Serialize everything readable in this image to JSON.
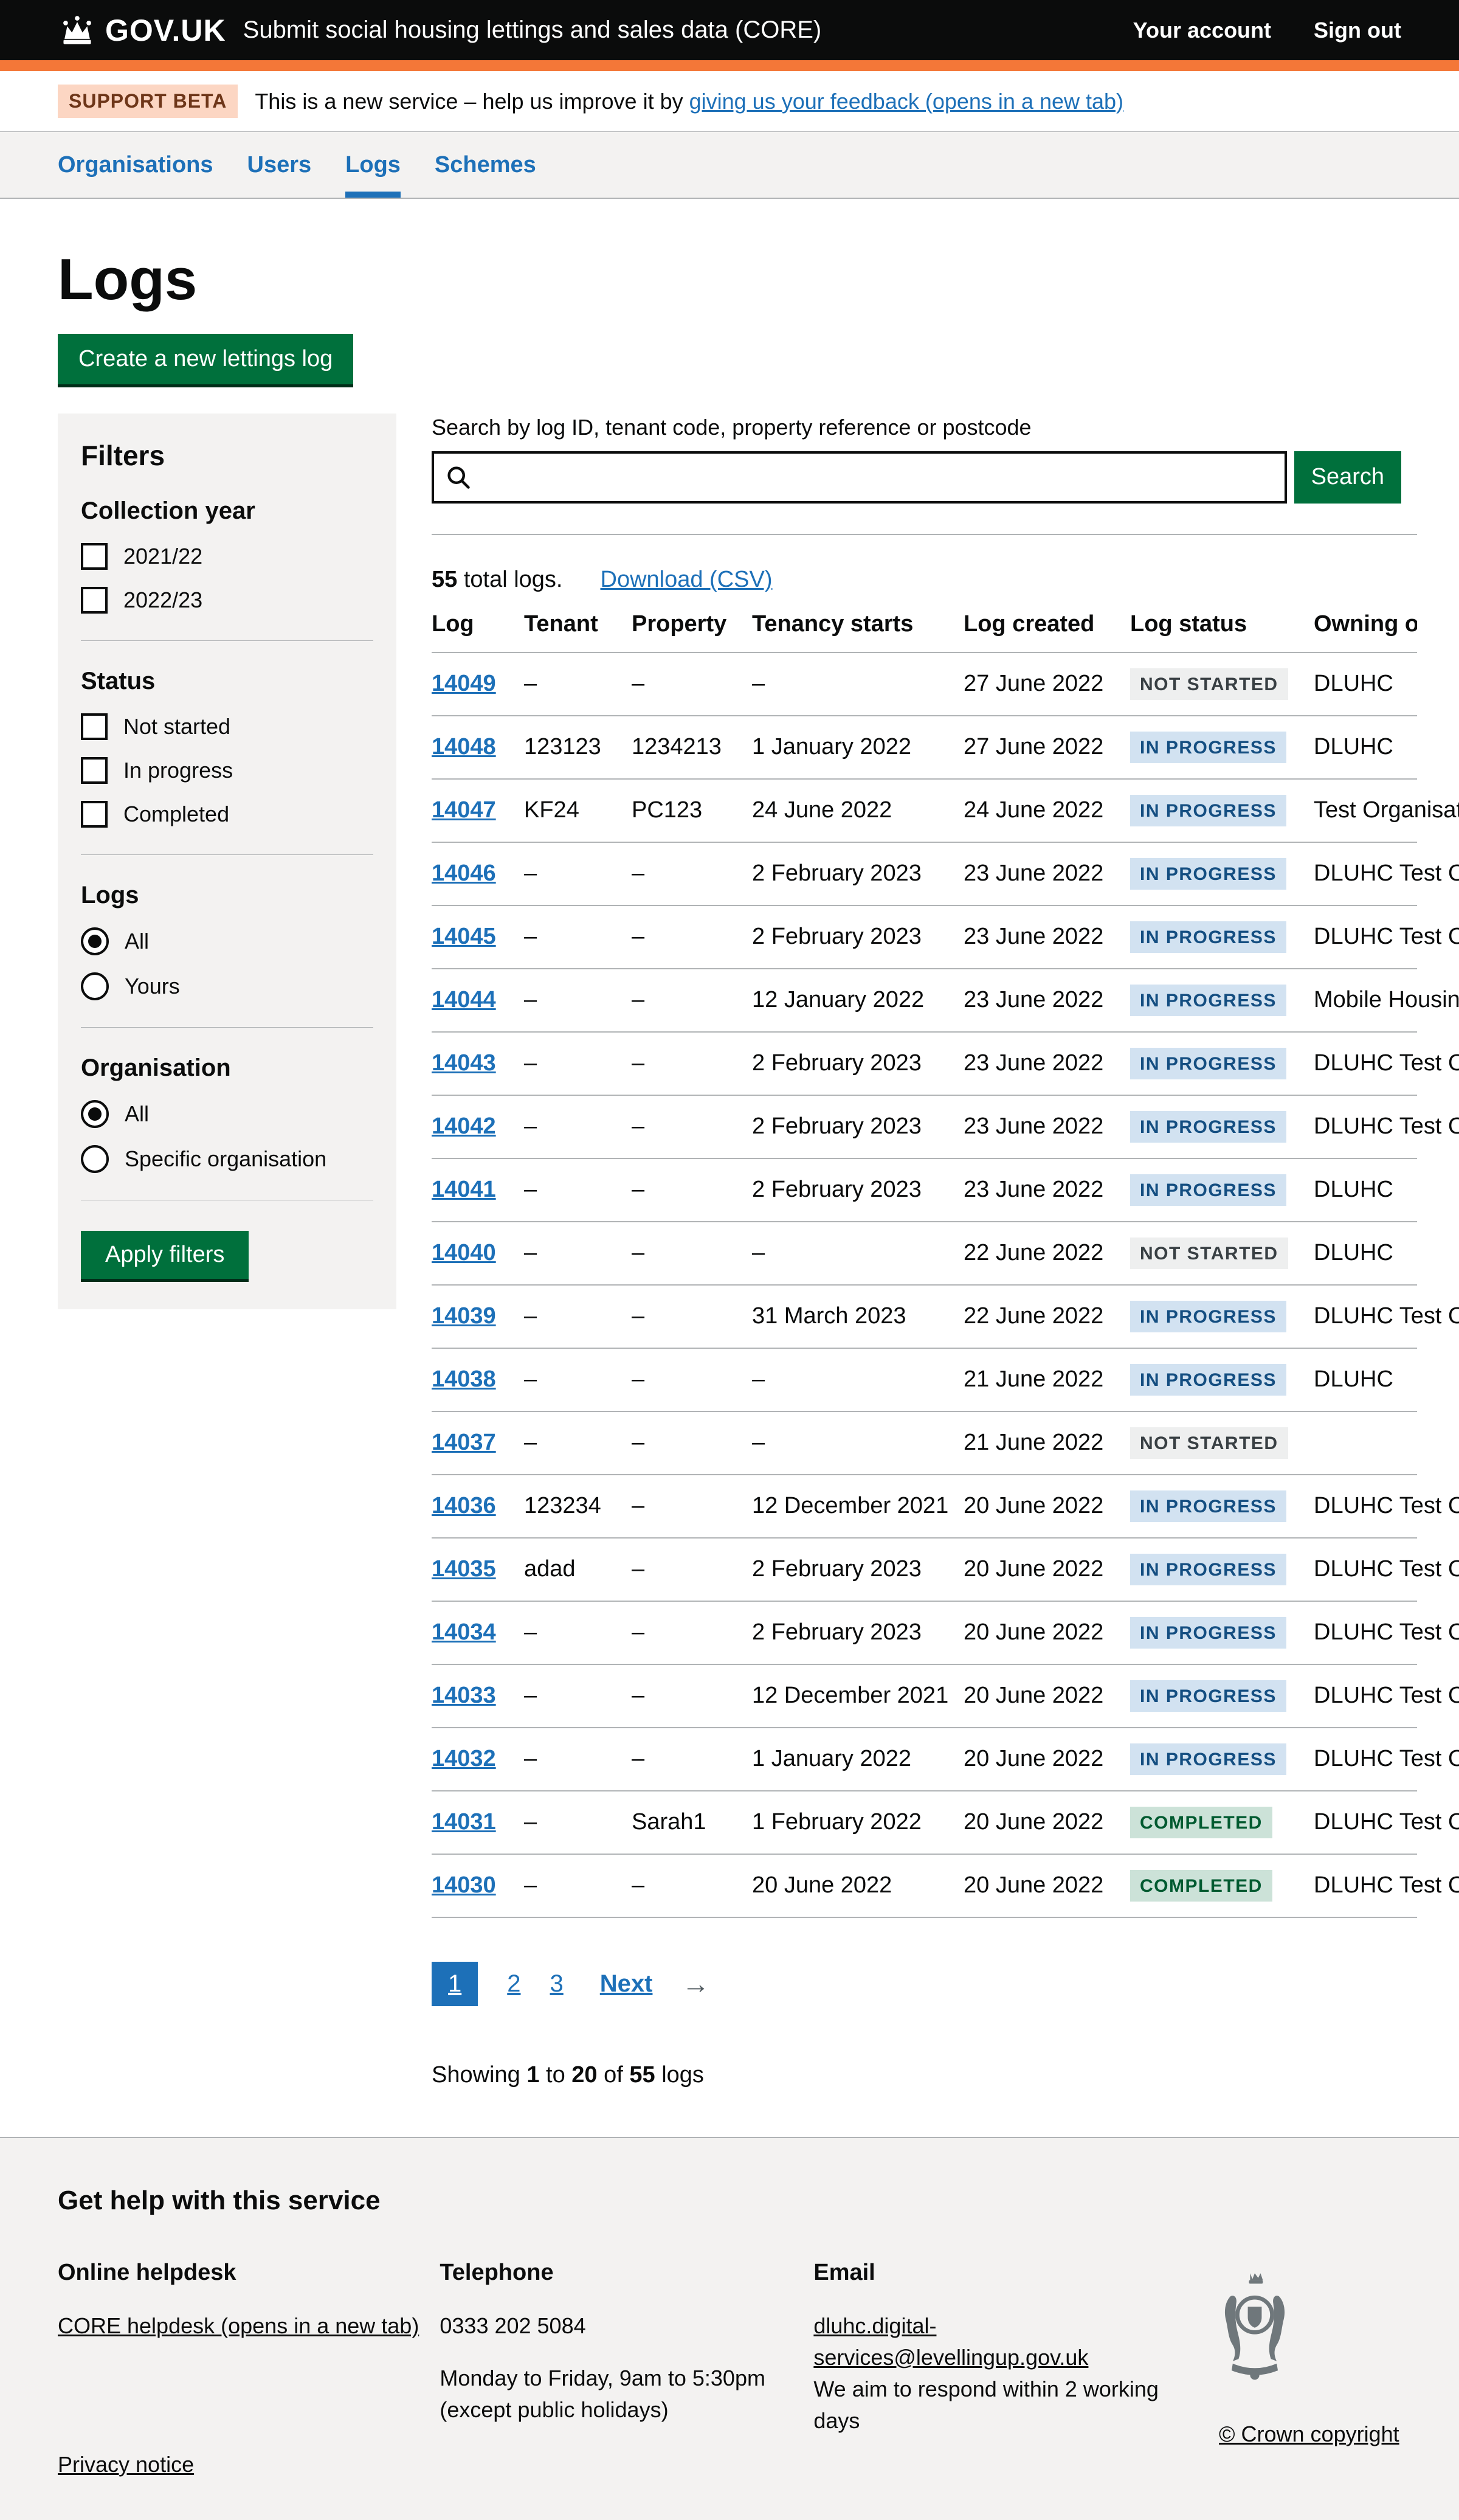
{
  "header": {
    "logo_text": "GOV.UK",
    "service_name": "Submit social housing lettings and sales data (CORE)",
    "account_link": "Your account",
    "signout_link": "Sign out"
  },
  "phase_banner": {
    "tag": "SUPPORT BETA",
    "message": "This is a new service – help us improve it by ",
    "feedback_link": "giving us your feedback (opens in a new tab)"
  },
  "nav": {
    "items": [
      {
        "label": "Organisations",
        "active": false
      },
      {
        "label": "Users",
        "active": false
      },
      {
        "label": "Logs",
        "active": true
      },
      {
        "label": "Schemes",
        "active": false
      }
    ]
  },
  "page": {
    "title": "Logs",
    "create_button": "Create a new lettings log"
  },
  "filters": {
    "heading": "Filters",
    "apply_button": "Apply filters",
    "groups": [
      {
        "label": "Collection year",
        "type": "checkbox",
        "options": [
          {
            "label": "2021/22",
            "checked": false
          },
          {
            "label": "2022/23",
            "checked": false
          }
        ]
      },
      {
        "label": "Status",
        "type": "checkbox",
        "options": [
          {
            "label": "Not started",
            "checked": false
          },
          {
            "label": "In progress",
            "checked": false
          },
          {
            "label": "Completed",
            "checked": false
          }
        ]
      },
      {
        "label": "Logs",
        "type": "radio",
        "options": [
          {
            "label": "All",
            "checked": true
          },
          {
            "label": "Yours",
            "checked": false
          }
        ]
      },
      {
        "label": "Organisation",
        "type": "radio",
        "options": [
          {
            "label": "All",
            "checked": true
          },
          {
            "label": "Specific organisation",
            "checked": false
          }
        ]
      }
    ]
  },
  "search": {
    "label": "Search by log ID, tenant code, property reference or postcode",
    "value": "",
    "button": "Search"
  },
  "results": {
    "count": "55",
    "count_text": " total logs.",
    "download_link": "Download (CSV)"
  },
  "table": {
    "columns": [
      "Log",
      "Tenant",
      "Property",
      "Tenancy starts",
      "Log created",
      "Log status",
      "Owning or"
    ],
    "rows": [
      {
        "log": "14049",
        "tenant": "–",
        "property": "–",
        "tenancy_starts": "–",
        "log_created": "27 June 2022",
        "status": "NOT STARTED",
        "status_variant": "grey",
        "owning_org": "DLUHC"
      },
      {
        "log": "14048",
        "tenant": "123123",
        "property": "1234213",
        "tenancy_starts": "1 January 2022",
        "log_created": "27 June 2022",
        "status": "IN PROGRESS",
        "status_variant": "blue",
        "owning_org": "DLUHC"
      },
      {
        "log": "14047",
        "tenant": "KF24",
        "property": "PC123",
        "tenancy_starts": "24 June 2022",
        "log_created": "24 June 2022",
        "status": "IN PROGRESS",
        "status_variant": "blue",
        "owning_org": "Test Organisation"
      },
      {
        "log": "14046",
        "tenant": "–",
        "property": "–",
        "tenancy_starts": "2 February 2023",
        "log_created": "23 June 2022",
        "status": "IN PROGRESS",
        "status_variant": "blue",
        "owning_org": "DLUHC Test Organisation"
      },
      {
        "log": "14045",
        "tenant": "–",
        "property": "–",
        "tenancy_starts": "2 February 2023",
        "log_created": "23 June 2022",
        "status": "IN PROGRESS",
        "status_variant": "blue",
        "owning_org": "DLUHC Test Organisation"
      },
      {
        "log": "14044",
        "tenant": "–",
        "property": "–",
        "tenancy_starts": "12 January 2022",
        "log_created": "23 June 2022",
        "status": "IN PROGRESS",
        "status_variant": "blue",
        "owning_org": "Mobile Housing Organisation"
      },
      {
        "log": "14043",
        "tenant": "–",
        "property": "–",
        "tenancy_starts": "2 February 2023",
        "log_created": "23 June 2022",
        "status": "IN PROGRESS",
        "status_variant": "blue",
        "owning_org": "DLUHC Test Organisation"
      },
      {
        "log": "14042",
        "tenant": "–",
        "property": "–",
        "tenancy_starts": "2 February 2023",
        "log_created": "23 June 2022",
        "status": "IN PROGRESS",
        "status_variant": "blue",
        "owning_org": "DLUHC Test Organisation"
      },
      {
        "log": "14041",
        "tenant": "–",
        "property": "–",
        "tenancy_starts": "2 February 2023",
        "log_created": "23 June 2022",
        "status": "IN PROGRESS",
        "status_variant": "blue",
        "owning_org": "DLUHC"
      },
      {
        "log": "14040",
        "tenant": "–",
        "property": "–",
        "tenancy_starts": "–",
        "log_created": "22 June 2022",
        "status": "NOT STARTED",
        "status_variant": "grey",
        "owning_org": "DLUHC"
      },
      {
        "log": "14039",
        "tenant": "–",
        "property": "–",
        "tenancy_starts": "31 March 2023",
        "log_created": "22 June 2022",
        "status": "IN PROGRESS",
        "status_variant": "blue",
        "owning_org": "DLUHC Test Organisation"
      },
      {
        "log": "14038",
        "tenant": "–",
        "property": "–",
        "tenancy_starts": "–",
        "log_created": "21 June 2022",
        "status": "IN PROGRESS",
        "status_variant": "blue",
        "owning_org": "DLUHC"
      },
      {
        "log": "14037",
        "tenant": "–",
        "property": "–",
        "tenancy_starts": "–",
        "log_created": "21 June 2022",
        "status": "NOT STARTED",
        "status_variant": "grey",
        "owning_org": ""
      },
      {
        "log": "14036",
        "tenant": "123234",
        "property": "–",
        "tenancy_starts": "12 December 2021",
        "log_created": "20 June 2022",
        "status": "IN PROGRESS",
        "status_variant": "blue",
        "owning_org": "DLUHC Test Organisation"
      },
      {
        "log": "14035",
        "tenant": "adad",
        "property": "–",
        "tenancy_starts": "2 February 2023",
        "log_created": "20 June 2022",
        "status": "IN PROGRESS",
        "status_variant": "blue",
        "owning_org": "DLUHC Test Organisation"
      },
      {
        "log": "14034",
        "tenant": "–",
        "property": "–",
        "tenancy_starts": "2 February 2023",
        "log_created": "20 June 2022",
        "status": "IN PROGRESS",
        "status_variant": "blue",
        "owning_org": "DLUHC Test Organisation"
      },
      {
        "log": "14033",
        "tenant": "–",
        "property": "–",
        "tenancy_starts": "12 December 2021",
        "log_created": "20 June 2022",
        "status": "IN PROGRESS",
        "status_variant": "blue",
        "owning_org": "DLUHC Test Organisation"
      },
      {
        "log": "14032",
        "tenant": "–",
        "property": "–",
        "tenancy_starts": "1 January 2022",
        "log_created": "20 June 2022",
        "status": "IN PROGRESS",
        "status_variant": "blue",
        "owning_org": "DLUHC Test Organisation"
      },
      {
        "log": "14031",
        "tenant": "–",
        "property": "Sarah1",
        "tenancy_starts": "1 February 2022",
        "log_created": "20 June 2022",
        "status": "COMPLETED",
        "status_variant": "green",
        "owning_org": "DLUHC Test Organisation"
      },
      {
        "log": "14030",
        "tenant": "–",
        "property": "–",
        "tenancy_starts": "20 June 2022",
        "log_created": "20 June 2022",
        "status": "COMPLETED",
        "status_variant": "green",
        "owning_org": "DLUHC Test Organisation"
      }
    ]
  },
  "pagination": {
    "current": "1",
    "pages": [
      "1",
      "2",
      "3"
    ],
    "next": "Next",
    "next_arrow": "→"
  },
  "summary": {
    "prefix": "Showing ",
    "from": "1",
    "to_word": " to ",
    "to": "20",
    "of_word": " of ",
    "total": "55",
    "suffix": " logs"
  },
  "footer": {
    "heading": "Get help with this service",
    "helpdesk_heading": "Online helpdesk",
    "helpdesk_link": "CORE helpdesk (opens in a new tab)",
    "telephone_heading": "Telephone",
    "telephone_number": "0333 202 5084",
    "telephone_hours": "Monday to Friday, 9am to 5:30pm",
    "telephone_note": "(except public holidays)",
    "email_heading": "Email",
    "email_link": "dluhc.digital-services@levellingup.gov.uk",
    "email_note": "We aim to respond within 2 working days",
    "privacy_link": "Privacy notice",
    "copyright_link": "© Crown copyright"
  },
  "colors": {
    "link_blue": "#1d70b8",
    "button_green": "#00703c",
    "header_black": "#0b0c0c",
    "accent_orange": "#f47738",
    "panel_grey": "#f3f2f1",
    "tag_grey_bg": "#eeefef",
    "tag_blue_bg": "#d2e2f1",
    "tag_green_bg": "#cce2d8"
  }
}
